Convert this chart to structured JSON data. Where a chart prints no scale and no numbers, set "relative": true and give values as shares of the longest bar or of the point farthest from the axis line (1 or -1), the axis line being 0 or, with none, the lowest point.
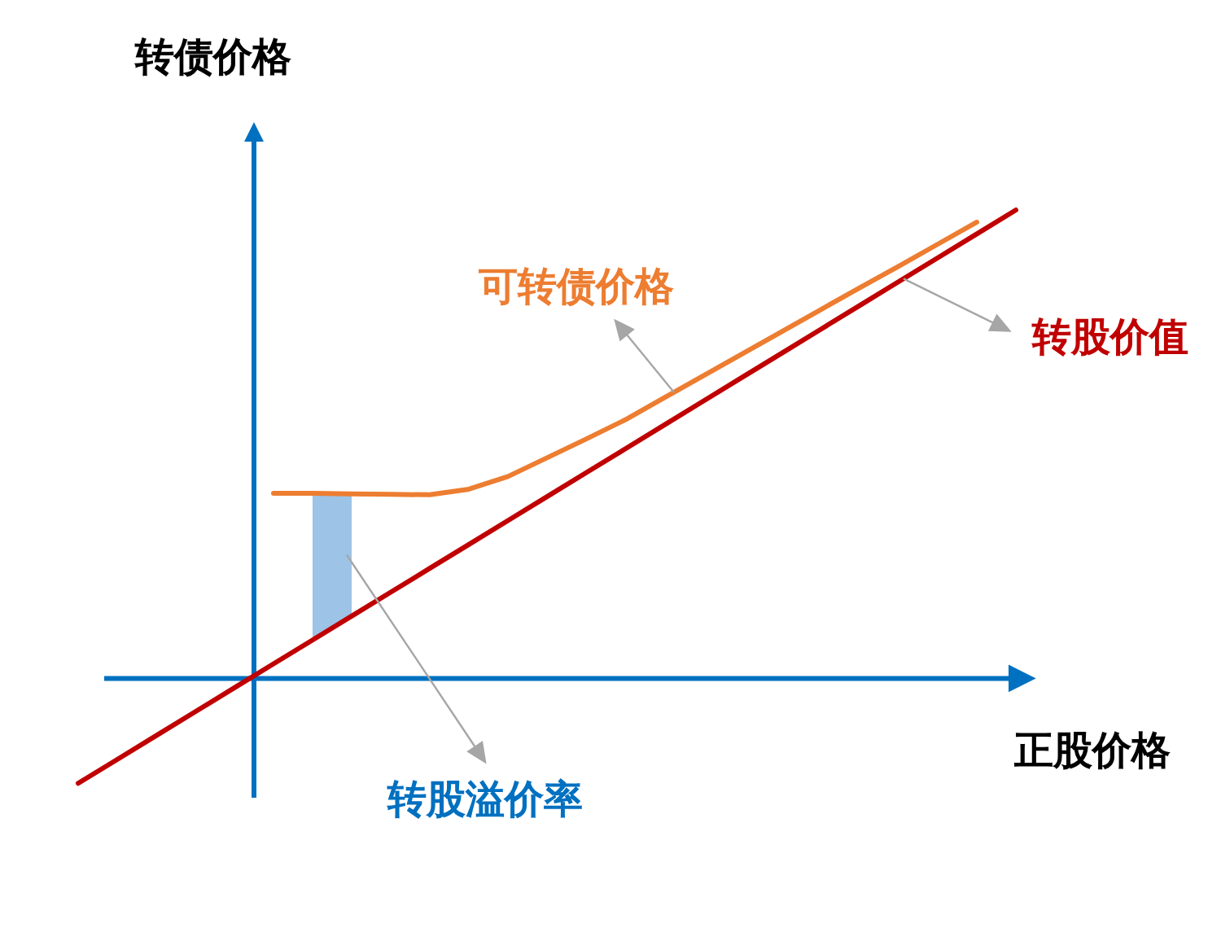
{
  "chart_data": {
    "type": "line",
    "relative": true,
    "xlabel": "正股价格",
    "ylabel": "转债价格",
    "categories": [
      null,
      null,
      null,
      null,
      null,
      null,
      null,
      null,
      null,
      null,
      null,
      null,
      null,
      null,
      null,
      null,
      null,
      null,
      null,
      null,
      null,
      null,
      null,
      null,
      null
    ],
    "series": [
      {
        "name": "可转债价格",
        "color": "#ed7d31",
        "values": [
          null,
          null,
          null,
          null,
          null,
          0.395,
          0.395,
          0.394,
          0.393,
          0.392,
          0.404,
          0.431,
          0.471,
          0.511,
          0.552,
          0.599,
          0.646,
          0.693,
          0.74,
          0.787,
          0.834,
          0.88,
          0.927,
          0.974,
          null
        ]
      },
      {
        "name": "转股价值",
        "color": "#c00000",
        "values": [
          -0.224,
          -0.173,
          -0.122,
          -0.071,
          -0.02,
          0.031,
          0.082,
          0.133,
          0.184,
          0.235,
          0.286,
          0.337,
          0.388,
          0.439,
          0.49,
          0.541,
          0.592,
          0.643,
          0.694,
          0.745,
          0.796,
          0.847,
          0.898,
          0.949,
          1
        ]
      },
      {
        "type": "area",
        "color": "#9dc3e6",
        "values": [
          null,
          null,
          null,
          null,
          null,
          null,
          null,
          null,
          null,
          null,
          null,
          null,
          null,
          null,
          null,
          null,
          null,
          null,
          null,
          null,
          null,
          null,
          null,
          null,
          null
        ],
        "lower": [
          null,
          null,
          null,
          null,
          null,
          null,
          0.082,
          0.133,
          null,
          null,
          null,
          null,
          null,
          null,
          null,
          null,
          null,
          null,
          null,
          null,
          null,
          null,
          null,
          null,
          null
        ],
        "upper": [
          null,
          null,
          null,
          null,
          null,
          null,
          0.395,
          0.394,
          null,
          null,
          null,
          null,
          null,
          null,
          null,
          null,
          null,
          null,
          null,
          null,
          null,
          null,
          null,
          null,
          null
        ]
      }
    ],
    "ref_lines": [
      {
        "axis": "y",
        "value": 0,
        "color": "#0070c0"
      }
    ],
    "annotations": [
      "转股溢价率"
    ]
  }
}
